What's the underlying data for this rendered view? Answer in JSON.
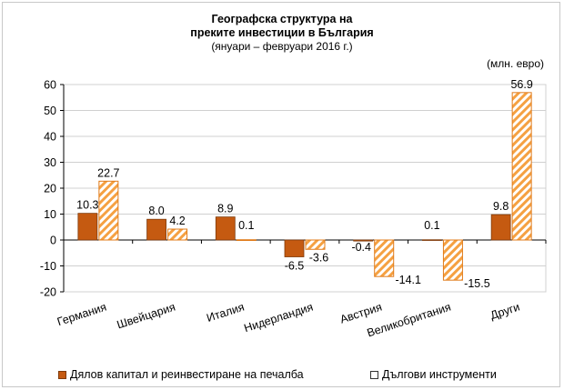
{
  "title_line1": "Географска структура на",
  "title_line2": "преките инвестиции в България",
  "subtitle": "(януари – февруари 2016 г.)",
  "unit": "(млн. евро)",
  "colors": {
    "equity": "#c55a11",
    "debt_stripe": "#f4b183",
    "debt_edge": "#e07b1a"
  },
  "chart_data": {
    "type": "bar",
    "title": "Географска структура на преките инвестиции в България",
    "subtitle": "(януари – февруари 2016 г.)",
    "ylabel": "(млн. евро)",
    "ylim": [
      -20,
      60
    ],
    "yticks": [
      -20,
      -10,
      0,
      10,
      20,
      30,
      40,
      50,
      60
    ],
    "grid": true,
    "legend": "bottom",
    "categories": [
      "Германия",
      "Швейцария",
      "Италия",
      "Нидерландия",
      "Австрия",
      "Великобритания",
      "Други"
    ],
    "series": [
      {
        "name": "Дялов капитал и реинвестиране на печалба",
        "values": [
          10.3,
          8.0,
          8.9,
          -6.5,
          -0.4,
          0.1,
          9.8
        ],
        "labels": [
          "10.3",
          "8.0",
          "8.9",
          "-6.5",
          "-0.4",
          "0.1",
          "9.8"
        ]
      },
      {
        "name": "Дългови инструменти",
        "values": [
          22.7,
          4.2,
          0.1,
          -3.6,
          -14.1,
          -15.5,
          56.9
        ],
        "labels": [
          "22.7",
          "4.2",
          "0.1",
          "-3.6",
          "-14.1",
          "-15.5",
          "56.9"
        ]
      }
    ]
  }
}
